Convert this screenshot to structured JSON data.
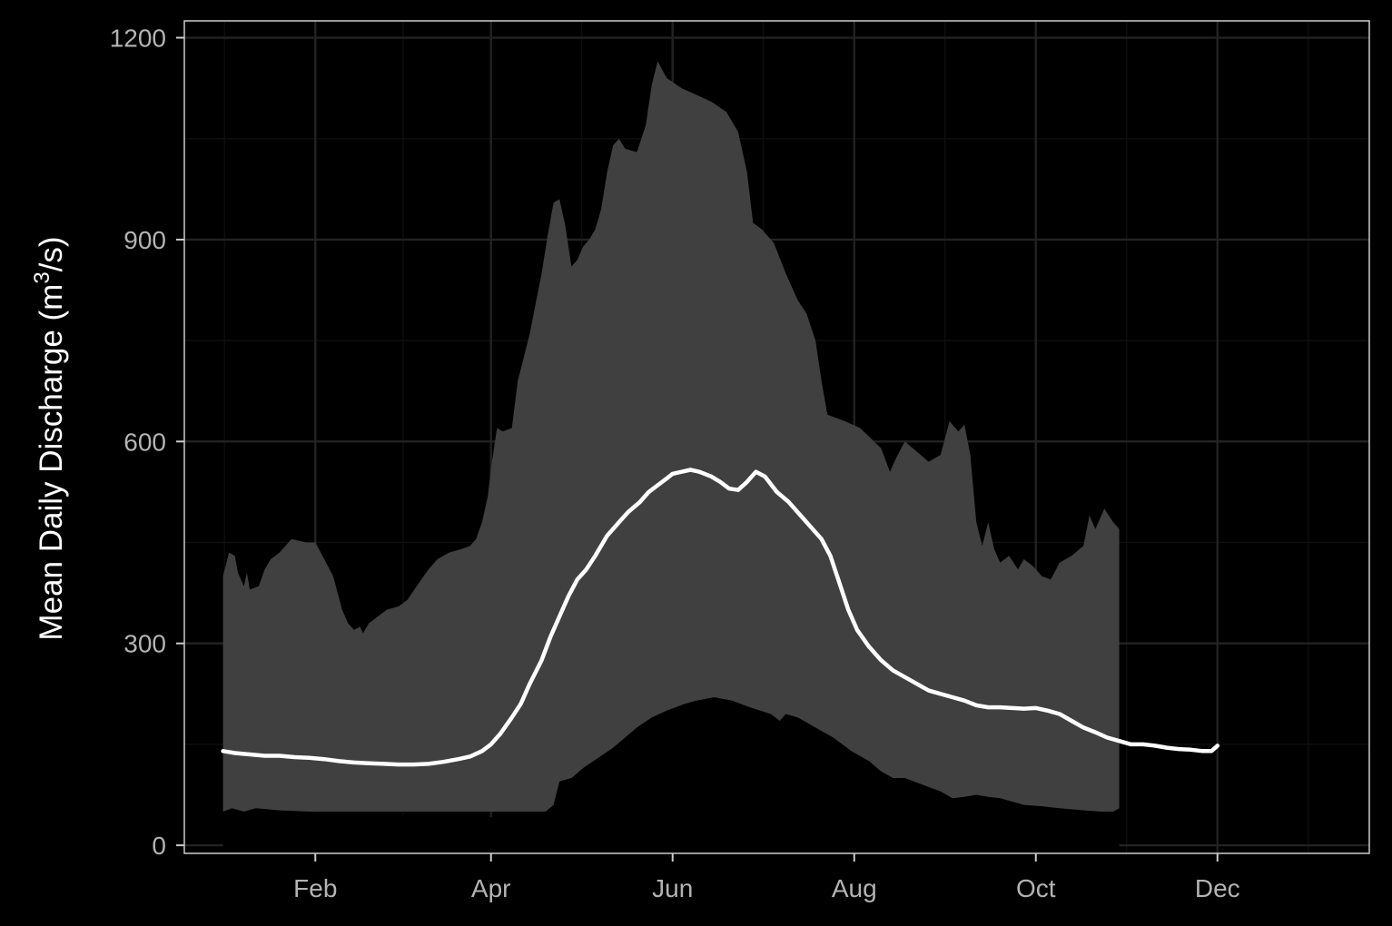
{
  "chart_data": {
    "type": "area",
    "title": "",
    "xlabel": "",
    "ylabel": "Mean Daily Discharge (m",
    "ylabel_superscript": "3",
    "ylabel_suffix": "/s)",
    "ylim": [
      0,
      1200
    ],
    "y_ticks": [
      0,
      300,
      600,
      900,
      1200
    ],
    "x_ticks": [
      {
        "label": "Feb",
        "day": 32
      },
      {
        "label": "Apr",
        "day": 91
      },
      {
        "label": "Jun",
        "day": 152
      },
      {
        "label": "Aug",
        "day": 213
      },
      {
        "label": "Oct",
        "day": 274
      },
      {
        "label": "Dec",
        "day": 335
      }
    ],
    "xlim_days": [
      -12,
      386
    ],
    "grid": true,
    "legend": "none",
    "colors": {
      "background": "#000000",
      "panel_border": "#cccccc",
      "grid_major": "#222222",
      "grid_minor": "#111111",
      "ribbon": "#404040",
      "line": "#ffffff",
      "tick_text": "#b3b3b3",
      "title_text": "#ffffff"
    },
    "series": [
      {
        "role": "range-max",
        "points": [
          [
            1,
            400
          ],
          [
            3,
            435
          ],
          [
            5,
            430
          ],
          [
            6,
            405
          ],
          [
            8,
            385
          ],
          [
            9,
            405
          ],
          [
            10,
            380
          ],
          [
            13,
            385
          ],
          [
            15,
            410
          ],
          [
            17,
            425
          ],
          [
            20,
            435
          ],
          [
            24,
            455
          ],
          [
            29,
            450
          ],
          [
            32,
            450
          ],
          [
            35,
            425
          ],
          [
            38,
            400
          ],
          [
            41,
            350
          ],
          [
            43,
            330
          ],
          [
            45,
            320
          ],
          [
            47,
            325
          ],
          [
            48,
            315
          ],
          [
            50,
            330
          ],
          [
            53,
            340
          ],
          [
            56,
            350
          ],
          [
            60,
            355
          ],
          [
            63,
            365
          ],
          [
            66,
            385
          ],
          [
            70,
            410
          ],
          [
            73,
            425
          ],
          [
            77,
            435
          ],
          [
            81,
            440
          ],
          [
            84,
            445
          ],
          [
            86,
            455
          ],
          [
            88,
            480
          ],
          [
            90,
            520
          ],
          [
            91,
            560
          ],
          [
            93,
            620
          ],
          [
            95,
            615
          ],
          [
            98,
            620
          ],
          [
            100,
            690
          ],
          [
            102,
            725
          ],
          [
            104,
            760
          ],
          [
            106,
            805
          ],
          [
            108,
            850
          ],
          [
            110,
            905
          ],
          [
            112,
            955
          ],
          [
            114,
            960
          ],
          [
            116,
            920
          ],
          [
            118,
            860
          ],
          [
            120,
            870
          ],
          [
            122,
            890
          ],
          [
            124,
            900
          ],
          [
            126,
            915
          ],
          [
            128,
            945
          ],
          [
            130,
            1000
          ],
          [
            132,
            1040
          ],
          [
            134,
            1050
          ],
          [
            136,
            1035
          ],
          [
            140,
            1030
          ],
          [
            143,
            1070
          ],
          [
            145,
            1130
          ],
          [
            147,
            1165
          ],
          [
            150,
            1140
          ],
          [
            155,
            1125
          ],
          [
            160,
            1115
          ],
          [
            165,
            1105
          ],
          [
            170,
            1090
          ],
          [
            174,
            1060
          ],
          [
            177,
            1000
          ],
          [
            179,
            925
          ],
          [
            182,
            915
          ],
          [
            186,
            895
          ],
          [
            190,
            850
          ],
          [
            194,
            810
          ],
          [
            197,
            790
          ],
          [
            200,
            750
          ],
          [
            202,
            690
          ],
          [
            204,
            640
          ],
          [
            210,
            630
          ],
          [
            215,
            620
          ],
          [
            222,
            590
          ],
          [
            225,
            555
          ],
          [
            227,
            575
          ],
          [
            230,
            600
          ],
          [
            234,
            585
          ],
          [
            238,
            570
          ],
          [
            242,
            580
          ],
          [
            245,
            630
          ],
          [
            248,
            615
          ],
          [
            250,
            625
          ],
          [
            252,
            580
          ],
          [
            254,
            480
          ],
          [
            256,
            445
          ],
          [
            258,
            480
          ],
          [
            260,
            440
          ],
          [
            262,
            420
          ],
          [
            265,
            430
          ],
          [
            268,
            410
          ],
          [
            270,
            425
          ],
          [
            273,
            415
          ],
          [
            276,
            400
          ],
          [
            279,
            395
          ],
          [
            282,
            420
          ],
          [
            286,
            430
          ],
          [
            290,
            445
          ],
          [
            292,
            490
          ],
          [
            294,
            470
          ],
          [
            297,
            500
          ],
          [
            300,
            480
          ],
          [
            302,
            470
          ],
          [
            302,
            300
          ],
          [
            302,
            50
          ],
          [
            1,
            50
          ]
        ]
      },
      {
        "role": "range-min",
        "points": [
          [
            1,
            50
          ],
          [
            4,
            55
          ],
          [
            8,
            50
          ],
          [
            12,
            55
          ],
          [
            20,
            52
          ],
          [
            30,
            50
          ],
          [
            40,
            48
          ],
          [
            50,
            47
          ],
          [
            60,
            45
          ],
          [
            70,
            44
          ],
          [
            80,
            42
          ],
          [
            90,
            42
          ],
          [
            100,
            40
          ],
          [
            108,
            45
          ],
          [
            112,
            60
          ],
          [
            114,
            95
          ],
          [
            118,
            100
          ],
          [
            122,
            115
          ],
          [
            127,
            130
          ],
          [
            132,
            145
          ],
          [
            136,
            160
          ],
          [
            140,
            175
          ],
          [
            145,
            190
          ],
          [
            150,
            200
          ],
          [
            156,
            210
          ],
          [
            160,
            215
          ],
          [
            166,
            220
          ],
          [
            172,
            215
          ],
          [
            178,
            205
          ],
          [
            185,
            195
          ],
          [
            188,
            185
          ],
          [
            190,
            195
          ],
          [
            194,
            190
          ],
          [
            198,
            180
          ],
          [
            202,
            170
          ],
          [
            206,
            160
          ],
          [
            212,
            140
          ],
          [
            218,
            125
          ],
          [
            222,
            110
          ],
          [
            226,
            100
          ],
          [
            230,
            100
          ],
          [
            236,
            90
          ],
          [
            242,
            80
          ],
          [
            246,
            70
          ],
          [
            250,
            72
          ],
          [
            254,
            75
          ],
          [
            258,
            72
          ],
          [
            262,
            70
          ],
          [
            266,
            65
          ],
          [
            270,
            60
          ],
          [
            276,
            58
          ],
          [
            282,
            55
          ],
          [
            290,
            52
          ],
          [
            296,
            50
          ],
          [
            300,
            50
          ],
          [
            302,
            55
          ]
        ]
      },
      {
        "name": "",
        "role": "mean",
        "points": [
          [
            1,
            140
          ],
          [
            5,
            137
          ],
          [
            10,
            135
          ],
          [
            15,
            133
          ],
          [
            20,
            133
          ],
          [
            25,
            131
          ],
          [
            30,
            130
          ],
          [
            35,
            128
          ],
          [
            40,
            125
          ],
          [
            45,
            123
          ],
          [
            50,
            122
          ],
          [
            55,
            121
          ],
          [
            60,
            120
          ],
          [
            65,
            120
          ],
          [
            70,
            121
          ],
          [
            75,
            124
          ],
          [
            80,
            128
          ],
          [
            84,
            132
          ],
          [
            88,
            140
          ],
          [
            91,
            150
          ],
          [
            94,
            165
          ],
          [
            98,
            190
          ],
          [
            101,
            210
          ],
          [
            104,
            240
          ],
          [
            108,
            275
          ],
          [
            111,
            310
          ],
          [
            114,
            340
          ],
          [
            117,
            370
          ],
          [
            120,
            395
          ],
          [
            123,
            410
          ],
          [
            126,
            430
          ],
          [
            130,
            460
          ],
          [
            134,
            480
          ],
          [
            137,
            495
          ],
          [
            141,
            510
          ],
          [
            144,
            525
          ],
          [
            147,
            535
          ],
          [
            150,
            545
          ],
          [
            152,
            552
          ],
          [
            155,
            555
          ],
          [
            158,
            558
          ],
          [
            161,
            555
          ],
          [
            165,
            548
          ],
          [
            168,
            540
          ],
          [
            171,
            530
          ],
          [
            174,
            528
          ],
          [
            177,
            540
          ],
          [
            180,
            555
          ],
          [
            183,
            548
          ],
          [
            187,
            525
          ],
          [
            191,
            510
          ],
          [
            194,
            495
          ],
          [
            198,
            475
          ],
          [
            202,
            455
          ],
          [
            205,
            430
          ],
          [
            208,
            390
          ],
          [
            211,
            350
          ],
          [
            214,
            320
          ],
          [
            218,
            295
          ],
          [
            222,
            275
          ],
          [
            226,
            260
          ],
          [
            230,
            250
          ],
          [
            234,
            240
          ],
          [
            238,
            230
          ],
          [
            242,
            225
          ],
          [
            246,
            220
          ],
          [
            250,
            215
          ],
          [
            254,
            208
          ],
          [
            258,
            205
          ],
          [
            262,
            205
          ],
          [
            266,
            204
          ],
          [
            270,
            203
          ],
          [
            274,
            204
          ],
          [
            278,
            200
          ],
          [
            282,
            195
          ],
          [
            286,
            185
          ],
          [
            290,
            175
          ],
          [
            294,
            168
          ],
          [
            298,
            160
          ],
          [
            302,
            155
          ],
          [
            306,
            150
          ],
          [
            310,
            150
          ],
          [
            314,
            148
          ],
          [
            318,
            145
          ],
          [
            322,
            143
          ],
          [
            326,
            142
          ],
          [
            330,
            140
          ],
          [
            333,
            140
          ],
          [
            335,
            148
          ]
        ]
      }
    ]
  }
}
